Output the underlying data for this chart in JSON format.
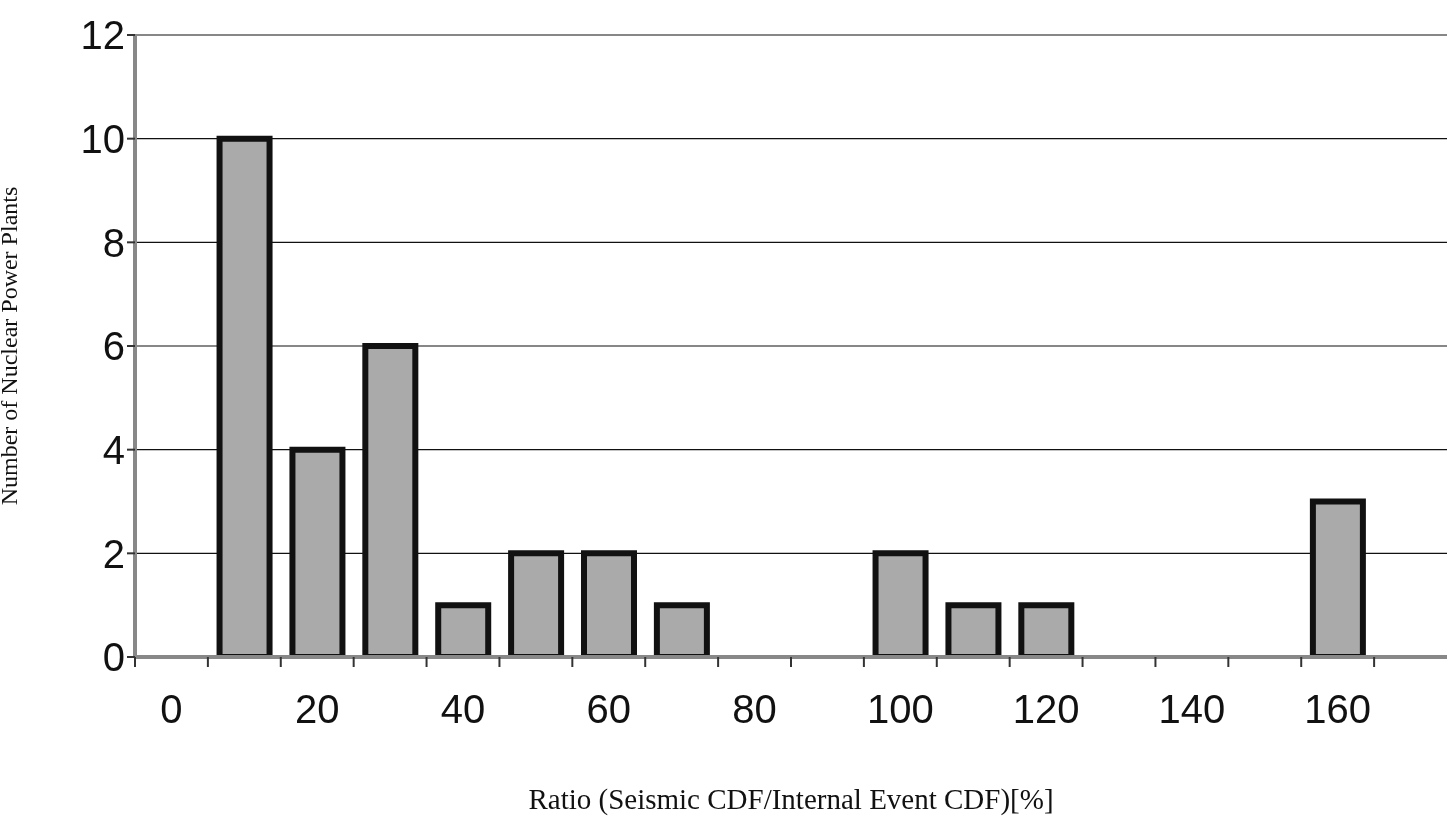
{
  "chart_data": {
    "type": "bar",
    "xlabel": "Ratio (Seismic CDF/Internal Event CDF)[%]",
    "ylabel": "Number of Nuclear Power Plants",
    "categories": [
      "0",
      null,
      "20",
      null,
      "40",
      null,
      "60",
      null,
      "80",
      null,
      "100",
      null,
      "120",
      null,
      "140",
      null,
      "160",
      null
    ],
    "values": [
      0,
      10,
      4,
      6,
      1,
      2,
      2,
      1,
      0,
      0,
      2,
      1,
      1,
      0,
      0,
      0,
      3,
      0
    ],
    "color": "#aaaaaa",
    "ylim": [
      0,
      12
    ],
    "yticks": [
      0,
      2,
      4,
      6,
      8,
      10,
      12
    ],
    "grid": "y"
  }
}
